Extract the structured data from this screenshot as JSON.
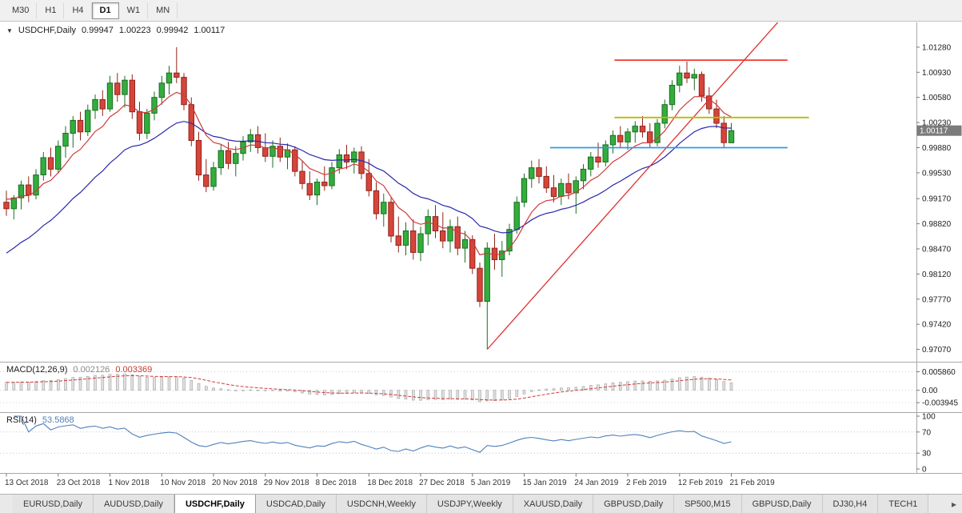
{
  "toolbar": {
    "timeframes": [
      "M30",
      "H1",
      "H4",
      "D1",
      "W1",
      "MN"
    ],
    "active": "D1"
  },
  "chart": {
    "title": {
      "icon": "▼",
      "symbol": "USDCHF,Daily",
      "open": "0.99947",
      "high": "1.00223",
      "low": "0.99942",
      "close": "1.00117"
    },
    "current_price_label": "1.00117"
  },
  "macd": {
    "label": "MACD(12,26,9)",
    "value": "0.002126",
    "signal": "0.003369"
  },
  "rsi": {
    "label": "RSI(14)",
    "value": "53.5868"
  },
  "chart_data": {
    "type": "candlestick",
    "symbol": "USDCHF",
    "timeframe": "Daily",
    "ohlc_current": {
      "open": 0.99947,
      "high": 1.00223,
      "low": 0.99942,
      "close": 1.00117
    },
    "y_axis": {
      "labels": [
        "1.01280",
        "1.00930",
        "1.00580",
        "1.00230",
        "0.99880",
        "0.99530",
        "0.99170",
        "0.98820",
        "0.98470",
        "0.98120",
        "0.97770",
        "0.97420",
        "0.97070"
      ],
      "top": 1.0158,
      "bottom": 0.9692
    },
    "x_axis": {
      "labels": [
        "13 Oct 2018",
        "23 Oct 2018",
        "1 Nov 2018",
        "10 Nov 2018",
        "20 Nov 2018",
        "29 Nov 2018",
        "8 Dec 2018",
        "18 Dec 2018",
        "27 Dec 2018",
        "5 Jan 2019",
        "15 Jan 2019",
        "24 Jan 2019",
        "2 Feb 2019",
        "12 Feb 2019",
        "21 Feb 2019"
      ],
      "label_every": 7
    },
    "candles": [
      [
        0.9912,
        0.9928,
        0.9893,
        0.9903
      ],
      [
        0.9903,
        0.9922,
        0.9888,
        0.9918
      ],
      [
        0.9918,
        0.9942,
        0.9902,
        0.9936
      ],
      [
        0.9936,
        0.9948,
        0.9912,
        0.9922
      ],
      [
        0.9922,
        0.9958,
        0.9916,
        0.995
      ],
      [
        0.995,
        0.9982,
        0.9942,
        0.9974
      ],
      [
        0.9974,
        0.9988,
        0.9948,
        0.9958
      ],
      [
        0.9958,
        0.9998,
        0.9952,
        0.999
      ],
      [
        0.999,
        1.0018,
        0.9974,
        1.0008
      ],
      [
        1.0008,
        1.0032,
        0.9988,
        1.0026
      ],
      [
        1.0026,
        1.0038,
        0.9998,
        1.001
      ],
      [
        1.001,
        1.0048,
        1.0004,
        1.004
      ],
      [
        1.004,
        1.0062,
        1.0028,
        1.0055
      ],
      [
        1.0055,
        1.0068,
        1.0032,
        1.0042
      ],
      [
        1.0042,
        1.0088,
        1.0038,
        1.0078
      ],
      [
        1.0078,
        1.0092,
        1.0052,
        1.0062
      ],
      [
        1.0062,
        1.0088,
        1.0044,
        1.0082
      ],
      [
        1.0082,
        1.009,
        1.0028,
        1.0038
      ],
      [
        1.0038,
        1.0052,
        0.9998,
        1.0008
      ],
      [
        1.0008,
        1.0042,
        1.0,
        1.0036
      ],
      [
        1.0036,
        1.0066,
        1.0026,
        1.0058
      ],
      [
        1.0058,
        1.0088,
        1.0048,
        1.0078
      ],
      [
        1.0078,
        1.0102,
        1.0062,
        1.0092
      ],
      [
        1.0092,
        1.0128,
        1.0078,
        1.0086
      ],
      [
        1.0086,
        1.0092,
        1.004,
        1.0048
      ],
      [
        1.0048,
        1.0058,
        0.999,
        0.9998
      ],
      [
        0.9998,
        1.001,
        0.9942,
        0.995
      ],
      [
        0.995,
        0.9972,
        0.9926,
        0.9934
      ],
      [
        0.9934,
        0.9968,
        0.9928,
        0.996
      ],
      [
        0.996,
        0.9992,
        0.995,
        0.9984
      ],
      [
        0.9984,
        0.9996,
        0.9958,
        0.9966
      ],
      [
        0.9966,
        0.999,
        0.9948,
        0.998
      ],
      [
        0.998,
        1.0004,
        0.997,
        0.9996
      ],
      [
        0.9996,
        1.0014,
        0.9982,
        1.0006
      ],
      [
        1.0006,
        1.0018,
        0.998,
        0.9988
      ],
      [
        0.9988,
        1.0008,
        0.9968,
        0.9976
      ],
      [
        0.9976,
        0.9998,
        0.996,
        0.999
      ],
      [
        0.999,
        1.0002,
        0.9968,
        0.9975
      ],
      [
        0.9975,
        0.9994,
        0.9958,
        0.9985
      ],
      [
        0.9985,
        0.999,
        0.9948,
        0.9955
      ],
      [
        0.9955,
        0.997,
        0.993,
        0.9938
      ],
      [
        0.9938,
        0.9955,
        0.9915,
        0.9922
      ],
      [
        0.9922,
        0.9945,
        0.9908,
        0.994
      ],
      [
        0.994,
        0.9962,
        0.9928,
        0.9935
      ],
      [
        0.9935,
        0.9968,
        0.993,
        0.996
      ],
      [
        0.996,
        0.9986,
        0.9952,
        0.9978
      ],
      [
        0.9978,
        0.9992,
        0.9958,
        0.9968
      ],
      [
        0.9968,
        0.9988,
        0.9952,
        0.9982
      ],
      [
        0.9982,
        0.999,
        0.9944,
        0.9952
      ],
      [
        0.9952,
        0.9972,
        0.992,
        0.9928
      ],
      [
        0.9928,
        0.994,
        0.9888,
        0.9896
      ],
      [
        0.9896,
        0.9924,
        0.9878,
        0.9912
      ],
      [
        0.9912,
        0.9918,
        0.9856,
        0.9865
      ],
      [
        0.9865,
        0.9892,
        0.9842,
        0.9852
      ],
      [
        0.9852,
        0.9884,
        0.9838,
        0.9872
      ],
      [
        0.9872,
        0.9888,
        0.9832,
        0.9842
      ],
      [
        0.9842,
        0.9878,
        0.983,
        0.9868
      ],
      [
        0.9868,
        0.9902,
        0.9852,
        0.9892
      ],
      [
        0.9892,
        0.9908,
        0.9862,
        0.9872
      ],
      [
        0.9872,
        0.9898,
        0.9848,
        0.9858
      ],
      [
        0.9858,
        0.9888,
        0.9842,
        0.9878
      ],
      [
        0.9878,
        0.9892,
        0.9838,
        0.9848
      ],
      [
        0.9848,
        0.9872,
        0.9828,
        0.986
      ],
      [
        0.986,
        0.9866,
        0.9812,
        0.982
      ],
      [
        0.982,
        0.9828,
        0.9766,
        0.9774
      ],
      [
        0.9774,
        0.9856,
        0.9707,
        0.9848
      ],
      [
        0.9848,
        0.9868,
        0.9818,
        0.9832
      ],
      [
        0.9832,
        0.9858,
        0.9808,
        0.9844
      ],
      [
        0.9844,
        0.9882,
        0.9838,
        0.9874
      ],
      [
        0.9874,
        0.992,
        0.9868,
        0.9912
      ],
      [
        0.9912,
        0.9952,
        0.9905,
        0.9945
      ],
      [
        0.9945,
        0.997,
        0.9932,
        0.996
      ],
      [
        0.996,
        0.9972,
        0.9938,
        0.9948
      ],
      [
        0.9948,
        0.9962,
        0.9925,
        0.9932
      ],
      [
        0.9932,
        0.995,
        0.9912,
        0.992
      ],
      [
        0.992,
        0.9945,
        0.9908,
        0.9938
      ],
      [
        0.9938,
        0.9952,
        0.9916,
        0.9925
      ],
      [
        0.9925,
        0.9948,
        0.9896,
        0.9942
      ],
      [
        0.9942,
        0.9965,
        0.993,
        0.9958
      ],
      [
        0.9958,
        0.9982,
        0.9948,
        0.9975
      ],
      [
        0.9975,
        0.9995,
        0.996,
        0.9968
      ],
      [
        0.9968,
        0.9998,
        0.9962,
        0.9992
      ],
      [
        0.9992,
        1.0012,
        0.998,
        1.0005
      ],
      [
        1.0005,
        1.0018,
        0.9988,
        0.9996
      ],
      [
        0.9996,
        1.0015,
        0.9985,
        1.001
      ],
      [
        1.001,
        1.0025,
        0.9995,
        1.0018
      ],
      [
        1.0018,
        1.0032,
        1.0002,
        1.001
      ],
      [
        1.001,
        1.0022,
        0.9988,
        0.9995
      ],
      [
        0.9995,
        1.0028,
        0.999,
        1.0022
      ],
      [
        1.0022,
        1.0055,
        1.0015,
        1.0048
      ],
      [
        1.0048,
        1.0082,
        1.004,
        1.0075
      ],
      [
        1.0075,
        1.0102,
        1.0065,
        1.0092
      ],
      [
        1.0092,
        1.0108,
        1.0078,
        1.0085
      ],
      [
        1.0085,
        1.0098,
        1.0068,
        1.009
      ],
      [
        1.009,
        1.0094,
        1.0052,
        1.006
      ],
      [
        1.006,
        1.0072,
        1.0035,
        1.0042
      ],
      [
        1.0042,
        1.0055,
        1.0015,
        1.0022
      ],
      [
        1.0022,
        1.0032,
        0.9988,
        0.9995
      ],
      [
        0.99947,
        1.00223,
        0.99942,
        1.00117
      ]
    ],
    "overlays": {
      "ma_fast": {
        "period": 8,
        "seed": 0.992,
        "color": "#d23a3a"
      },
      "ma_slow": {
        "period": 21,
        "seed": 0.9835,
        "color": "#2929ae"
      }
    },
    "objects": {
      "trendline": {
        "from": {
          "i": 65,
          "price": 0.9707
        },
        "to": {
          "i": 104.5,
          "price": 1.0165
        },
        "color": "#e03030"
      },
      "hline_red": {
        "price": 1.011,
        "i1": 82.2,
        "i2": 105.6,
        "color": "#f23b2e"
      },
      "hline_yellow": {
        "price": 1.003,
        "i1": 82.2,
        "i2": 108.5,
        "color": "#b6bd00"
      },
      "hline_blue": {
        "price": 0.9988,
        "i1": 73.5,
        "i2": 105.6,
        "color": "#2f9be3"
      }
    },
    "indicators": {
      "macd": {
        "params": "12,26,9",
        "value": 0.002126,
        "signal": 0.003369,
        "axis_labels": [
          "0.005860",
          "0.00",
          "-0.003945"
        ],
        "range": [
          -0.0062,
          0.0075
        ],
        "histogram_color": "#e0e0e0",
        "histogram_border": "#a0a0a0",
        "signal_color": "#d23a3a"
      },
      "rsi": {
        "period": 14,
        "value": 53.5868,
        "axis_labels": [
          "100",
          "70",
          "30",
          "0"
        ],
        "levels": [
          70,
          30
        ],
        "line_color": "#4f81bd"
      }
    },
    "colors": {
      "bull_fill": "#33ad3c",
      "bull_border": "#1b6e22",
      "bear_fill": "#d6453a",
      "bear_border": "#8f241c",
      "background": "#ffffff",
      "axis_text": "#1c1c1c",
      "price_marker_bg": "#7b7b7b"
    }
  },
  "tabs": {
    "items": [
      "EURUSD,Daily",
      "AUDUSD,Daily",
      "USDCHF,Daily",
      "USDCAD,Daily",
      "USDCNH,Weekly",
      "USDJPY,Weekly",
      "XAUUSD,Daily",
      "GBPUSD,Daily",
      "SP500,M15",
      "GBPUSD,Daily",
      "DJ30,H4",
      "TECH1"
    ],
    "active_index": 2,
    "overflow_arrow": "▸"
  }
}
